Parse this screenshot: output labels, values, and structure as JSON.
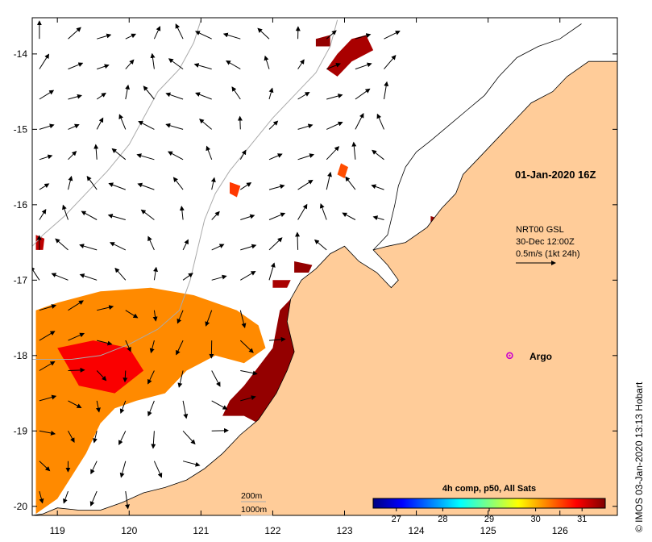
{
  "map": {
    "bounds": {
      "lon_min": 118.65,
      "lon_max": 126.8,
      "lat_min": -20.12,
      "lat_max": -13.52
    },
    "lon_ticks": [
      119,
      120,
      121,
      122,
      123,
      124,
      125,
      126
    ],
    "lon_tick_labels": [
      "119",
      "120",
      "121",
      "122",
      "123",
      "124",
      "125",
      "126"
    ],
    "lat_ticks": [
      -14,
      -15,
      -16,
      -17,
      -18,
      -19,
      -20
    ],
    "lat_tick_labels": [
      "-14",
      "-15",
      "-16",
      "-17",
      "-18",
      "-19",
      "-20"
    ],
    "colors": {
      "land": "#ffcc99",
      "ocean": "#ffffff",
      "isobath": "#aaaaaa",
      "coast": "#000000",
      "argo": "#cc00cc"
    }
  },
  "annotations": {
    "timestamp": "01-Jan-2020 16Z",
    "current_source": "NRT00 GSL",
    "current_time": "30-Dec 12:00Z",
    "current_scale": "0.5m/s (1kt 24h)",
    "argo_label": "Argo",
    "isobath_200": "200m",
    "isobath_1000": "1000m",
    "copyright": "© IMOS 03-Jan-2020 13:13 Hobart"
  },
  "argo_position": {
    "lon": 125.3,
    "lat": -18.0
  },
  "colorbar": {
    "title": "4h comp, p50, All Sats",
    "min": 26.5,
    "max": 31.5,
    "tick_values": [
      27,
      28,
      29,
      30,
      31
    ],
    "tick_labels": [
      "27",
      "28",
      "29",
      "30",
      "31"
    ],
    "stops": [
      "#000080",
      "#0000ff",
      "#0080ff",
      "#00ffff",
      "#80ff80",
      "#ffff00",
      "#ff8000",
      "#ff0000",
      "#800000"
    ]
  },
  "sst_regions": [
    {
      "points": [
        [
          118.7,
          -17.4
        ],
        [
          119.0,
          -17.3
        ],
        [
          119.6,
          -17.15
        ],
        [
          120.3,
          -17.1
        ],
        [
          120.9,
          -17.2
        ],
        [
          121.5,
          -17.4
        ],
        [
          121.8,
          -17.6
        ],
        [
          121.9,
          -17.9
        ],
        [
          121.6,
          -18.1
        ],
        [
          121.2,
          -18.0
        ],
        [
          120.8,
          -18.2
        ],
        [
          120.5,
          -18.5
        ],
        [
          120.1,
          -18.6
        ],
        [
          119.8,
          -18.7
        ],
        [
          119.6,
          -18.9
        ],
        [
          119.4,
          -19.3
        ],
        [
          119.2,
          -19.6
        ],
        [
          119.0,
          -19.9
        ],
        [
          118.7,
          -20.1
        ]
      ],
      "sst": 30.2
    },
    {
      "points": [
        [
          119.0,
          -17.9
        ],
        [
          119.5,
          -17.8
        ],
        [
          120.0,
          -17.9
        ],
        [
          120.2,
          -18.2
        ],
        [
          119.8,
          -18.5
        ],
        [
          119.3,
          -18.4
        ]
      ],
      "sst": 30.9
    },
    {
      "points": [
        [
          121.6,
          -18.4
        ],
        [
          122.0,
          -17.9
        ],
        [
          122.1,
          -17.4
        ],
        [
          122.3,
          -17.2
        ],
        [
          122.35,
          -17.5
        ],
        [
          122.3,
          -18.0
        ],
        [
          122.3,
          -18.4
        ],
        [
          122.1,
          -18.7
        ],
        [
          121.8,
          -18.9
        ],
        [
          121.6,
          -18.8
        ],
        [
          121.3,
          -18.8
        ],
        [
          121.4,
          -18.6
        ]
      ],
      "sst": 31.4
    },
    {
      "points": [
        [
          123.1,
          -13.8
        ],
        [
          123.3,
          -13.75
        ],
        [
          123.4,
          -13.95
        ],
        [
          123.1,
          -14.1
        ],
        [
          122.9,
          -14.3
        ],
        [
          122.75,
          -14.2
        ],
        [
          122.9,
          -14.0
        ]
      ],
      "sst": 31.3
    },
    {
      "points": [
        [
          122.6,
          -13.8
        ],
        [
          122.8,
          -13.75
        ],
        [
          122.8,
          -13.9
        ],
        [
          122.6,
          -13.9
        ]
      ],
      "sst": 31.4
    },
    {
      "points": [
        [
          122.95,
          -15.45
        ],
        [
          123.05,
          -15.5
        ],
        [
          123.0,
          -15.65
        ],
        [
          122.9,
          -15.6
        ]
      ],
      "sst": 30.5
    },
    {
      "points": [
        [
          121.4,
          -15.7
        ],
        [
          121.55,
          -15.75
        ],
        [
          121.5,
          -15.9
        ],
        [
          121.4,
          -15.85
        ]
      ],
      "sst": 30.6
    },
    {
      "points": [
        [
          118.7,
          -16.4
        ],
        [
          118.82,
          -16.45
        ],
        [
          118.8,
          -16.6
        ],
        [
          118.7,
          -16.6
        ]
      ],
      "sst": 31.2
    },
    {
      "points": [
        [
          124.2,
          -16.15
        ],
        [
          124.35,
          -16.2
        ],
        [
          124.3,
          -16.35
        ],
        [
          124.2,
          -16.3
        ]
      ],
      "sst": 31.4
    },
    {
      "points": [
        [
          124.95,
          -16.85
        ],
        [
          125.05,
          -16.9
        ],
        [
          125.0,
          -17.05
        ],
        [
          124.9,
          -17.0
        ]
      ],
      "sst": 31.4
    },
    {
      "points": [
        [
          122.3,
          -16.75
        ],
        [
          122.55,
          -16.8
        ],
        [
          122.5,
          -16.9
        ],
        [
          122.3,
          -16.9
        ]
      ],
      "sst": 31.4
    },
    {
      "points": [
        [
          122.0,
          -17.0
        ],
        [
          122.25,
          -17.0
        ],
        [
          122.2,
          -17.1
        ],
        [
          122.0,
          -17.1
        ]
      ],
      "sst": 31.3
    }
  ],
  "land_polygon": [
    [
      126.8,
      -13.52
    ],
    [
      126.8,
      -14.1
    ],
    [
      126.4,
      -14.1
    ],
    [
      126.1,
      -14.3
    ],
    [
      125.9,
      -14.5
    ],
    [
      125.6,
      -14.65
    ],
    [
      125.35,
      -14.9
    ],
    [
      125.15,
      -15.1
    ],
    [
      124.85,
      -15.4
    ],
    [
      124.65,
      -15.6
    ],
    [
      124.55,
      -15.85
    ],
    [
      124.35,
      -16.05
    ],
    [
      124.15,
      -16.3
    ],
    [
      123.85,
      -16.5
    ],
    [
      123.6,
      -16.55
    ],
    [
      123.4,
      -16.6
    ],
    [
      123.6,
      -16.8
    ],
    [
      123.75,
      -17.0
    ],
    [
      123.65,
      -17.1
    ],
    [
      123.45,
      -16.9
    ],
    [
      123.2,
      -16.75
    ],
    [
      123.0,
      -16.55
    ],
    [
      122.8,
      -16.65
    ],
    [
      122.6,
      -16.85
    ],
    [
      122.4,
      -17.0
    ],
    [
      122.25,
      -17.25
    ],
    [
      122.2,
      -17.55
    ],
    [
      122.3,
      -17.95
    ],
    [
      122.2,
      -18.2
    ],
    [
      122.05,
      -18.5
    ],
    [
      121.8,
      -18.85
    ],
    [
      121.55,
      -19.05
    ],
    [
      121.3,
      -19.3
    ],
    [
      121.05,
      -19.5
    ],
    [
      120.8,
      -19.65
    ],
    [
      120.5,
      -19.75
    ],
    [
      120.2,
      -19.82
    ],
    [
      119.9,
      -19.95
    ],
    [
      119.6,
      -20.05
    ],
    [
      119.3,
      -20.05
    ],
    [
      119.0,
      -20.02
    ],
    [
      118.8,
      -20.1
    ],
    [
      118.65,
      -20.12
    ],
    [
      118.65,
      -20.12
    ],
    [
      126.8,
      -20.12
    ]
  ],
  "coast_line": [
    [
      126.3,
      -13.6
    ],
    [
      126.0,
      -13.8
    ],
    [
      125.7,
      -13.9
    ],
    [
      125.4,
      -14.05
    ],
    [
      125.15,
      -14.3
    ],
    [
      124.95,
      -14.55
    ],
    [
      124.7,
      -14.75
    ],
    [
      124.45,
      -14.95
    ],
    [
      124.2,
      -15.15
    ],
    [
      124.0,
      -15.3
    ],
    [
      123.85,
      -15.5
    ],
    [
      123.75,
      -15.75
    ],
    [
      123.7,
      -16.0
    ],
    [
      123.65,
      -16.2
    ],
    [
      123.6,
      -16.4
    ],
    [
      123.5,
      -16.5
    ],
    [
      123.4,
      -16.6
    ]
  ],
  "isobath_200": [
    [
      122.9,
      -13.55
    ],
    [
      122.8,
      -13.9
    ],
    [
      122.6,
      -14.25
    ],
    [
      122.3,
      -14.55
    ],
    [
      122.0,
      -14.85
    ],
    [
      121.7,
      -15.2
    ],
    [
      121.4,
      -15.55
    ],
    [
      121.2,
      -15.85
    ],
    [
      121.05,
      -16.2
    ],
    [
      120.95,
      -16.6
    ],
    [
      120.85,
      -17.0
    ],
    [
      120.7,
      -17.4
    ],
    [
      120.4,
      -17.65
    ],
    [
      120.0,
      -17.85
    ],
    [
      119.6,
      -18.0
    ],
    [
      119.2,
      -18.05
    ],
    [
      118.8,
      -18.05
    ],
    [
      118.65,
      -18.05
    ]
  ],
  "isobath_1000": [
    [
      121.0,
      -13.55
    ],
    [
      120.9,
      -13.85
    ],
    [
      120.7,
      -14.2
    ],
    [
      120.4,
      -14.5
    ],
    [
      120.2,
      -14.85
    ],
    [
      120.0,
      -15.2
    ],
    [
      119.7,
      -15.55
    ],
    [
      119.4,
      -15.85
    ],
    [
      119.1,
      -16.15
    ],
    [
      118.8,
      -16.4
    ],
    [
      118.65,
      -16.55
    ]
  ],
  "currents": {
    "lons": [
      118.75,
      119.15,
      119.55,
      119.95,
      120.35,
      120.75,
      121.15,
      121.55,
      121.95,
      122.35,
      122.75,
      123.15,
      123.55
    ],
    "lats": [
      -13.8,
      -14.2,
      -14.6,
      -15.0,
      -15.4,
      -15.8,
      -16.2,
      -16.6,
      -17.0,
      -17.4,
      -17.8,
      -18.2,
      -18.6,
      -19.0,
      -19.4,
      -19.8
    ],
    "speed_scale_mps": 0.5
  }
}
